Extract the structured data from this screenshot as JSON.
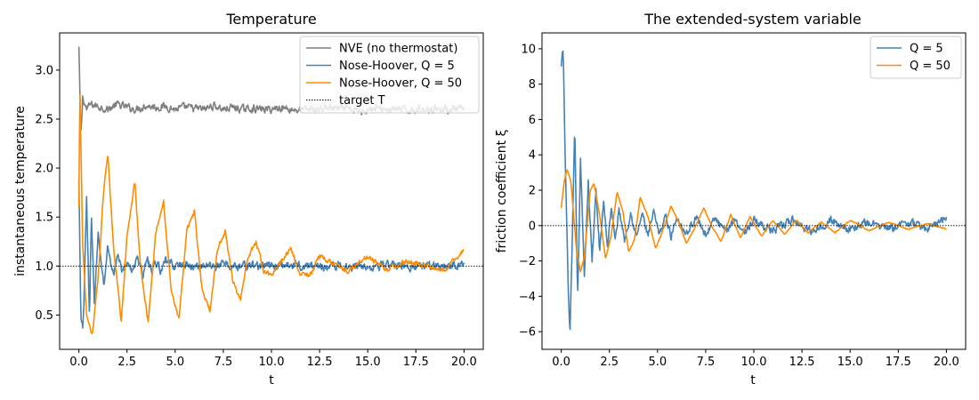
{
  "chart_data": [
    {
      "type": "line",
      "title": "Temperature",
      "xlabel": "t",
      "ylabel": "instantaneous temperature",
      "xlim": [
        -1.0,
        21.0
      ],
      "ylim": [
        0.15,
        3.38
      ],
      "xticks": [
        0.0,
        2.5,
        5.0,
        7.5,
        10.0,
        12.5,
        15.0,
        17.5,
        20.0
      ],
      "xtick_labels": [
        "0.0",
        "2.5",
        "5.0",
        "7.5",
        "10.0",
        "12.5",
        "15.0",
        "17.5",
        "20.0"
      ],
      "yticks": [
        0.5,
        1.0,
        1.5,
        2.0,
        2.5,
        3.0
      ],
      "ytick_labels": [
        "0.5",
        "1.0",
        "1.5",
        "2.0",
        "2.5",
        "3.0"
      ],
      "grid": false,
      "legend": "top-right",
      "series": [
        {
          "name": "NVE (no thermostat)",
          "color": "#7f7f7f",
          "x": [
            0.0,
            0.1,
            0.2,
            0.4,
            0.6,
            1.0,
            1.5,
            2.0,
            2.5,
            3.0,
            3.5,
            4.0,
            4.5,
            5.0,
            5.5,
            6.0,
            6.5,
            7.0,
            7.5,
            8.0,
            8.5,
            9.0,
            9.5,
            10.0,
            10.5,
            11.0,
            11.5,
            12.0,
            12.5,
            13.0,
            13.5,
            14.0,
            14.5,
            15.0,
            15.5,
            16.0,
            16.5,
            17.0,
            17.5,
            18.0,
            18.5,
            19.0,
            19.5,
            20.0
          ],
          "y": [
            3.24,
            2.3,
            2.72,
            2.6,
            2.65,
            2.63,
            2.6,
            2.65,
            2.62,
            2.6,
            2.64,
            2.62,
            2.63,
            2.6,
            2.62,
            2.61,
            2.6,
            2.64,
            2.6,
            2.62,
            2.6,
            2.61,
            2.6,
            2.6,
            2.62,
            2.6,
            2.59,
            2.6,
            2.6,
            2.62,
            2.6,
            2.6,
            2.58,
            2.6,
            2.61,
            2.6,
            2.6,
            2.59,
            2.6,
            2.6,
            2.61,
            2.6,
            2.6,
            2.6
          ],
          "noise_amplitude": 0.06
        },
        {
          "name": "Nose-Hoover, Q = 5",
          "color": "#4682b4",
          "x": [
            0.0,
            0.1,
            0.2,
            0.25,
            0.4,
            0.55,
            0.65,
            0.8,
            1.0,
            1.3,
            1.5,
            1.8,
            2.0,
            2.3,
            2.5,
            2.8,
            3.0,
            3.3,
            3.5,
            3.8,
            4.0,
            4.3,
            4.5,
            5.0,
            5.5,
            6.0,
            6.5,
            7.0,
            7.5,
            8.0,
            8.5,
            9.0,
            9.5,
            10.0,
            11.0,
            12.0,
            13.0,
            14.0,
            15.0,
            16.0,
            17.0,
            18.0,
            19.0,
            20.0
          ],
          "y": [
            1.88,
            0.45,
            0.38,
            0.5,
            1.72,
            0.45,
            1.56,
            0.62,
            1.3,
            0.8,
            1.2,
            0.9,
            1.1,
            0.95,
            1.05,
            0.92,
            1.12,
            0.9,
            1.08,
            0.95,
            1.05,
            0.93,
            1.05,
            1.0,
            1.02,
            0.98,
            1.01,
            1.0,
            1.02,
            0.99,
            1.0,
            1.01,
            1.0,
            1.0,
            1.01,
            1.0,
            1.0,
            1.0,
            1.0,
            1.01,
            1.0,
            1.0,
            1.0,
            1.02
          ],
          "noise_amplitude": 0.07
        },
        {
          "name": "Nose-Hoover, Q = 50",
          "color": "#ff8c00",
          "x": [
            0.0,
            0.05,
            0.2,
            0.4,
            0.7,
            1.0,
            1.3,
            1.5,
            1.8,
            2.2,
            2.5,
            2.9,
            3.2,
            3.6,
            4.0,
            4.4,
            4.8,
            5.2,
            5.6,
            6.0,
            6.4,
            6.8,
            7.2,
            7.6,
            8.0,
            8.4,
            8.8,
            9.2,
            9.6,
            10.0,
            10.5,
            11.0,
            11.5,
            12.0,
            12.5,
            13.0,
            14.0,
            15.0,
            16.0,
            17.0,
            18.0,
            19.0,
            20.0
          ],
          "y": [
            1.6,
            2.8,
            1.2,
            0.5,
            0.3,
            0.9,
            1.8,
            2.15,
            1.2,
            0.45,
            1.3,
            1.88,
            0.98,
            0.43,
            1.35,
            1.65,
            0.75,
            0.45,
            1.35,
            1.55,
            0.75,
            0.55,
            1.18,
            1.35,
            0.85,
            0.65,
            1.1,
            1.25,
            0.95,
            0.9,
            1.05,
            1.18,
            0.93,
            0.9,
            1.1,
            1.05,
            0.95,
            1.1,
            0.96,
            1.05,
            1.0,
            0.95,
            1.17
          ],
          "noise_amplitude": 0.04
        },
        {
          "name": "target T",
          "color": "#000000",
          "style": "dotted",
          "x": [
            -1.0,
            21.0
          ],
          "y": [
            1.0,
            1.0
          ]
        }
      ]
    },
    {
      "type": "line",
      "title": "The extended-system variable",
      "xlabel": "t",
      "ylabel": "friction coefficient ξ",
      "xlim": [
        -1.0,
        21.0
      ],
      "ylim": [
        -7.0,
        10.9
      ],
      "xticks": [
        0.0,
        2.5,
        5.0,
        7.5,
        10.0,
        12.5,
        15.0,
        17.5,
        20.0
      ],
      "xtick_labels": [
        "0.0",
        "2.5",
        "5.0",
        "7.5",
        "10.0",
        "12.5",
        "15.0",
        "17.5",
        "20.0"
      ],
      "yticks": [
        -6,
        -4,
        -2,
        0,
        2,
        4,
        6,
        8,
        10
      ],
      "ytick_labels": [
        "−6",
        "−4",
        "−2",
        "0",
        "2",
        "4",
        "6",
        "8",
        "10"
      ],
      "grid": false,
      "legend": "top-right",
      "series": [
        {
          "name": "Q = 5",
          "color": "#4682b4",
          "x": [
            0.0,
            0.1,
            0.2,
            0.35,
            0.45,
            0.55,
            0.7,
            0.85,
            1.0,
            1.2,
            1.4,
            1.6,
            1.8,
            2.0,
            2.2,
            2.4,
            2.6,
            2.8,
            3.0,
            3.3,
            3.6,
            3.9,
            4.2,
            4.5,
            4.8,
            5.1,
            5.4,
            5.7,
            6.0,
            6.5,
            7.0,
            7.5,
            8.0,
            8.5,
            9.0,
            9.5,
            10.0,
            11.0,
            12.0,
            13.0,
            14.0,
            15.0,
            16.0,
            17.0,
            18.0,
            19.0,
            20.0
          ],
          "y": [
            9.0,
            10.0,
            4.0,
            -3.0,
            -6.3,
            -2.0,
            5.5,
            -4.2,
            3.6,
            -2.8,
            2.5,
            -2.0,
            1.9,
            -1.5,
            1.4,
            -1.2,
            1.1,
            -0.9,
            0.9,
            -0.8,
            0.8,
            -0.7,
            0.7,
            -0.6,
            0.7,
            -0.6,
            0.6,
            -0.6,
            0.5,
            -0.5,
            0.5,
            -0.5,
            0.4,
            -0.4,
            0.4,
            -0.4,
            0.3,
            -0.3,
            0.3,
            -0.3,
            0.3,
            -0.2,
            0.2,
            -0.2,
            0.2,
            -0.2,
            0.5
          ],
          "noise_amplitude": 0.35
        },
        {
          "name": "Q = 50",
          "color": "#ff8c00",
          "x": [
            0.0,
            0.15,
            0.3,
            0.5,
            0.8,
            1.0,
            1.2,
            1.5,
            1.7,
            2.0,
            2.3,
            2.6,
            2.9,
            3.2,
            3.5,
            3.8,
            4.1,
            4.5,
            4.9,
            5.3,
            5.7,
            6.1,
            6.5,
            6.9,
            7.4,
            7.8,
            8.3,
            8.8,
            9.3,
            9.8,
            10.4,
            11.0,
            11.6,
            12.2,
            12.8,
            13.5,
            14.2,
            15.0,
            16.0,
            17.0,
            18.0,
            19.0,
            20.0
          ],
          "y": [
            1.0,
            2.5,
            3.2,
            2.5,
            -1.5,
            -2.6,
            -1.8,
            2.0,
            2.4,
            0.5,
            -1.9,
            -0.5,
            1.9,
            0.8,
            -1.5,
            -0.8,
            1.6,
            0.5,
            -1.3,
            -0.2,
            1.1,
            0.2,
            -1.0,
            -0.2,
            1.0,
            0.0,
            -0.9,
            0.6,
            -0.7,
            0.5,
            -0.6,
            0.3,
            -0.5,
            0.3,
            -0.4,
            0.2,
            -0.4,
            0.3,
            -0.3,
            0.2,
            -0.2,
            0.1,
            -0.2
          ],
          "noise_amplitude": 0.05
        },
        {
          "name": "",
          "color": "#000000",
          "style": "dotted",
          "x": [
            -1.0,
            21.0
          ],
          "y": [
            0.0,
            0.0
          ]
        }
      ]
    }
  ]
}
